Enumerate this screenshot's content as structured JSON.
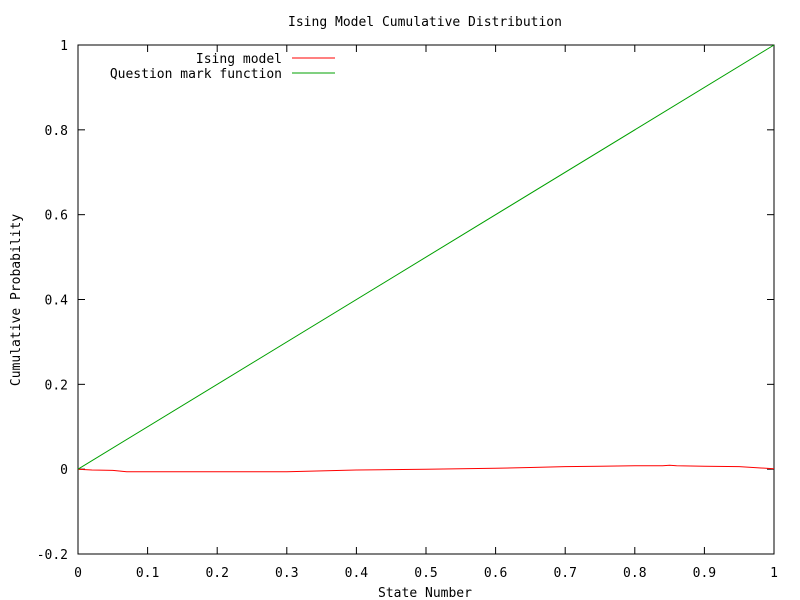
{
  "chart_data": {
    "type": "line",
    "title": "Ising Model Cumulative Distribution",
    "xlabel": "State Number",
    "ylabel": "Cumulative Probability",
    "xlim": [
      0,
      1
    ],
    "ylim": [
      -0.2,
      1
    ],
    "xticks": [
      0,
      0.1,
      0.2,
      0.3,
      0.4,
      0.5,
      0.6,
      0.7,
      0.8,
      0.9,
      1
    ],
    "yticks": [
      -0.2,
      0,
      0.2,
      0.4,
      0.6,
      0.8,
      1
    ],
    "xtick_labels": [
      "0",
      "0.1",
      "0.2",
      "0.3",
      "0.4",
      "0.5",
      "0.6",
      "0.7",
      "0.8",
      "0.9",
      "1"
    ],
    "ytick_labels": [
      "-0.2",
      "0",
      "0.2",
      "0.4",
      "0.6",
      "0.8",
      "1"
    ],
    "grid": false,
    "legend_position": "top-left",
    "series": [
      {
        "name": "Ising model",
        "color": "#ff0000",
        "x": [
          0,
          0.02,
          0.05,
          0.07,
          0.1,
          0.15,
          0.2,
          0.25,
          0.3,
          0.35,
          0.4,
          0.45,
          0.5,
          0.55,
          0.6,
          0.65,
          0.7,
          0.75,
          0.8,
          0.84,
          0.85,
          0.86,
          0.9,
          0.95,
          0.97,
          1
        ],
        "y": [
          0,
          -0.002,
          -0.003,
          -0.006,
          -0.006,
          -0.006,
          -0.006,
          -0.006,
          -0.006,
          -0.004,
          -0.002,
          -0.001,
          0,
          0.001,
          0.002,
          0.004,
          0.006,
          0.007,
          0.008,
          0.008,
          0.009,
          0.008,
          0.007,
          0.006,
          0.004,
          0.001
        ]
      },
      {
        "name": "Question mark function",
        "color": "#00a000",
        "x": [
          0,
          1
        ],
        "y": [
          0,
          1
        ]
      }
    ]
  }
}
